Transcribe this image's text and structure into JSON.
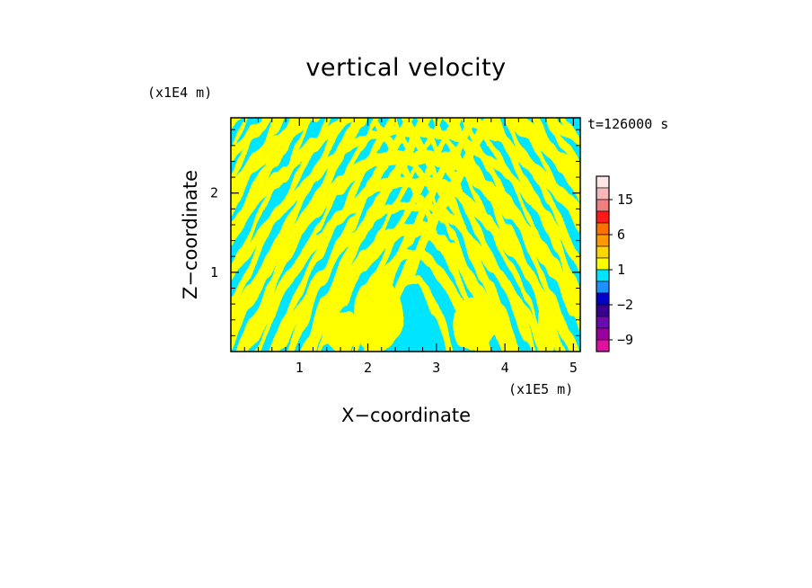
{
  "chart_data": {
    "type": "heatmap",
    "title": "vertical velocity",
    "xlabel": "X−coordinate",
    "ylabel": "Z−coordinate",
    "x_unit": "(x1E5 m)",
    "y_unit": "(x1E4 m)",
    "time_label": "t=126000 s",
    "xlim": [
      0,
      5.1
    ],
    "ylim": [
      0,
      2.95
    ],
    "x_ticks": [
      1,
      2,
      3,
      4,
      5
    ],
    "x_tick_labels": [
      "1",
      "2",
      "3",
      "4",
      "5"
    ],
    "y_ticks": [
      1,
      2
    ],
    "y_tick_labels": [
      "1",
      "2"
    ],
    "field_colors": {
      "positive": "#ffff00",
      "negative": "#00e5ff"
    },
    "colorbar": {
      "labels": [
        {
          "value": 15,
          "text": "15"
        },
        {
          "value": 6,
          "text": "6"
        },
        {
          "value": 1,
          "text": "1"
        },
        {
          "value": -2,
          "text": "−2"
        },
        {
          "value": -9,
          "text": "−9"
        }
      ],
      "bands": [
        {
          "from": 18,
          "to": 24,
          "color": "#ffe6e6"
        },
        {
          "from": 15,
          "to": 18,
          "color": "#f5b8b8"
        },
        {
          "from": 12,
          "to": 15,
          "color": "#f08080"
        },
        {
          "from": 9,
          "to": 12,
          "color": "#ff1a1a"
        },
        {
          "from": 6,
          "to": 9,
          "color": "#ff7000"
        },
        {
          "from": 3,
          "to": 6,
          "color": "#ff9a00"
        },
        {
          "from": 2,
          "to": 3,
          "color": "#ffd700"
        },
        {
          "from": 1,
          "to": 2,
          "color": "#ffff00"
        },
        {
          "from": 0,
          "to": 1,
          "color": "#00e5ff"
        },
        {
          "from": -1,
          "to": 0,
          "color": "#1e90ff"
        },
        {
          "from": -2,
          "to": -1,
          "color": "#0000cd"
        },
        {
          "from": -3,
          "to": -2,
          "color": "#3a0090"
        },
        {
          "from": -6,
          "to": -3,
          "color": "#6a0ab0"
        },
        {
          "from": -9,
          "to": -6,
          "color": "#9a00a0"
        },
        {
          "from": -12,
          "to": -9,
          "color": "#e010a0"
        }
      ]
    }
  }
}
